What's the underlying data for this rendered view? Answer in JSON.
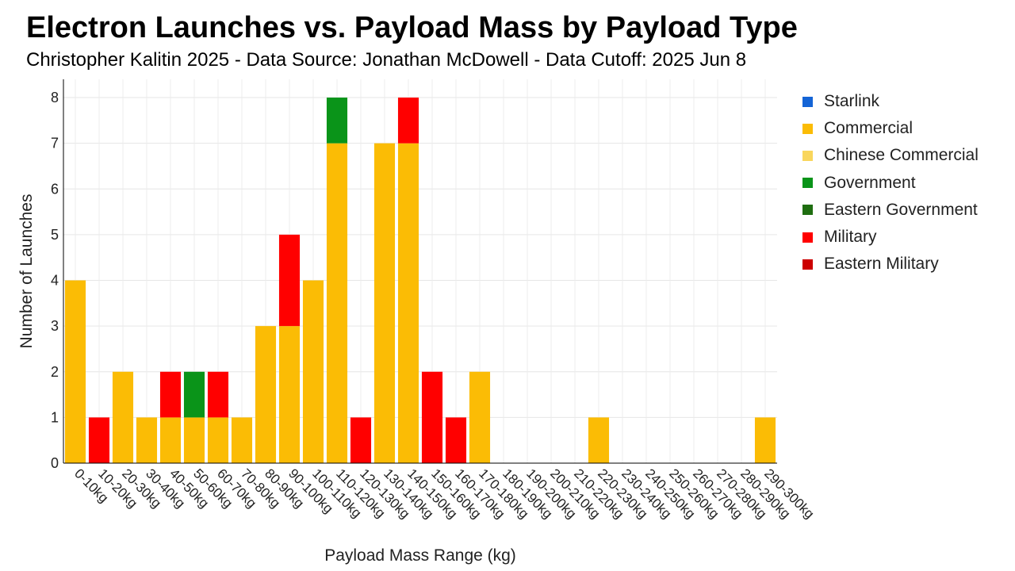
{
  "chart_data": {
    "type": "bar",
    "stacked": true,
    "title": "Electron Launches vs. Payload Mass by Payload Type",
    "subtitle": "Christopher Kalitin 2025 - Data Source: Jonathan McDowell - Data Cutoff: 2025 Jun 8",
    "xlabel": "Payload Mass Range (kg)",
    "ylabel": "Number of Launches",
    "ylim": [
      0,
      8.4
    ],
    "yticks": [
      0,
      1,
      2,
      3,
      4,
      5,
      6,
      7,
      8
    ],
    "grid": true,
    "legend_position": "right",
    "categories": [
      "0-10kg",
      "10-20kg",
      "20-30kg",
      "30-40kg",
      "40-50kg",
      "50-60kg",
      "60-70kg",
      "70-80kg",
      "80-90kg",
      "90-100kg",
      "100-110kg",
      "110-120kg",
      "120-130kg",
      "130-140kg",
      "140-150kg",
      "150-160kg",
      "160-170kg",
      "170-180kg",
      "180-190kg",
      "190-200kg",
      "200-210kg",
      "210-220kg",
      "220-230kg",
      "230-240kg",
      "240-250kg",
      "250-260kg",
      "260-270kg",
      "270-280kg",
      "280-290kg",
      "290-300kg"
    ],
    "series": [
      {
        "name": "Starlink",
        "color": "#1464d6",
        "values": [
          0,
          0,
          0,
          0,
          0,
          0,
          0,
          0,
          0,
          0,
          0,
          0,
          0,
          0,
          0,
          0,
          0,
          0,
          0,
          0,
          0,
          0,
          0,
          0,
          0,
          0,
          0,
          0,
          0,
          0
        ]
      },
      {
        "name": "Commercial",
        "color": "#fbbc05",
        "values": [
          4,
          0,
          2,
          1,
          1,
          1,
          1,
          1,
          3,
          3,
          4,
          7,
          0,
          7,
          7,
          0,
          0,
          2,
          0,
          0,
          0,
          0,
          1,
          0,
          0,
          0,
          0,
          0,
          0,
          1
        ]
      },
      {
        "name": "Chinese Commercial",
        "color": "#f9d65c",
        "values": [
          0,
          0,
          0,
          0,
          0,
          0,
          0,
          0,
          0,
          0,
          0,
          0,
          0,
          0,
          0,
          0,
          0,
          0,
          0,
          0,
          0,
          0,
          0,
          0,
          0,
          0,
          0,
          0,
          0,
          0
        ]
      },
      {
        "name": "Government",
        "color": "#0a9419",
        "values": [
          0,
          0,
          0,
          0,
          0,
          1,
          0,
          0,
          0,
          0,
          0,
          1,
          0,
          0,
          0,
          0,
          0,
          0,
          0,
          0,
          0,
          0,
          0,
          0,
          0,
          0,
          0,
          0,
          0,
          0
        ]
      },
      {
        "name": "Eastern Government",
        "color": "#1f6e11",
        "values": [
          0,
          0,
          0,
          0,
          0,
          0,
          0,
          0,
          0,
          0,
          0,
          0,
          0,
          0,
          0,
          0,
          0,
          0,
          0,
          0,
          0,
          0,
          0,
          0,
          0,
          0,
          0,
          0,
          0,
          0
        ]
      },
      {
        "name": "Military",
        "color": "#ff0000",
        "values": [
          0,
          1,
          0,
          0,
          1,
          0,
          1,
          0,
          0,
          2,
          0,
          0,
          1,
          0,
          1,
          2,
          1,
          0,
          0,
          0,
          0,
          0,
          0,
          0,
          0,
          0,
          0,
          0,
          0,
          0
        ]
      },
      {
        "name": "Eastern Military",
        "color": "#cc0000",
        "values": [
          0,
          0,
          0,
          0,
          0,
          0,
          0,
          0,
          0,
          0,
          0,
          0,
          0,
          0,
          0,
          0,
          0,
          0,
          0,
          0,
          0,
          0,
          0,
          0,
          0,
          0,
          0,
          0,
          0,
          0
        ]
      }
    ]
  }
}
